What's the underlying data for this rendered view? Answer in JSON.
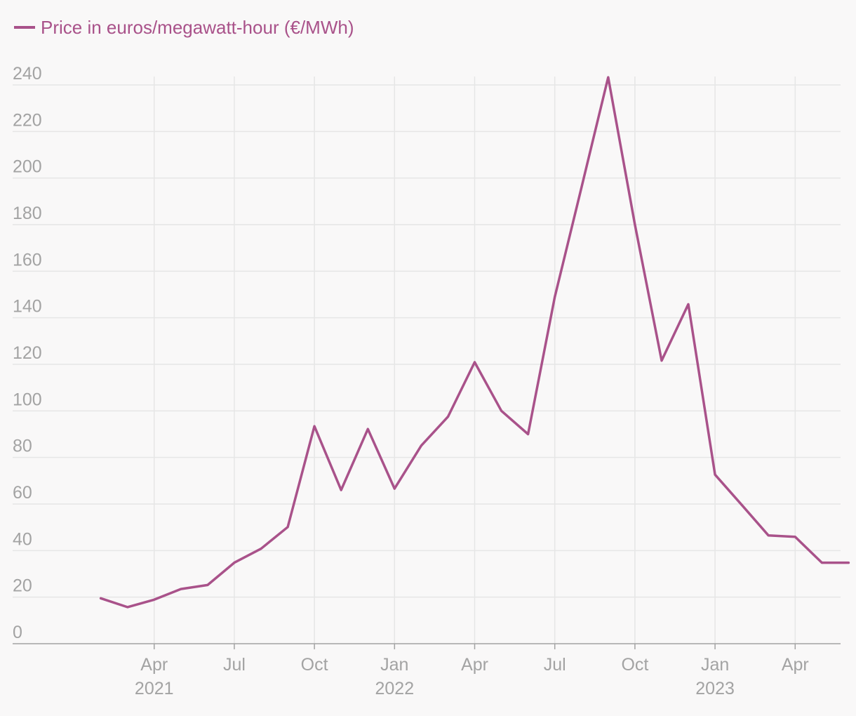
{
  "chart_data": {
    "type": "line",
    "title": "",
    "xlabel": "",
    "ylabel": "",
    "legend_position": "top-left",
    "series": [
      {
        "name": "Price in euros/megawatt-hour (€/MWh)",
        "color": "#a9528a",
        "x": [
          0,
          1,
          2,
          3,
          4,
          5,
          6,
          7,
          8,
          9,
          10,
          11,
          12,
          13,
          14,
          15,
          16,
          17,
          18,
          19,
          20,
          21,
          22,
          23,
          24,
          25,
          26,
          27,
          28
        ],
        "values": [
          19.5,
          15.7,
          18.9,
          23.5,
          25.2,
          34.8,
          40.8,
          50.1,
          93.4,
          66.0,
          92.2,
          66.6,
          85.1,
          97.5,
          120.9,
          100.0,
          90.0,
          148.9,
          196.0,
          243.3,
          180.0,
          121.6,
          145.8,
          72.6,
          59.6,
          46.5,
          45.9,
          34.8,
          34.8
        ]
      }
    ],
    "x_ticks": [
      {
        "x": 2,
        "label": "Apr"
      },
      {
        "x": 5,
        "label": "Jul"
      },
      {
        "x": 8,
        "label": "Oct"
      },
      {
        "x": 11,
        "label": "Jan"
      },
      {
        "x": 14,
        "label": "Apr"
      },
      {
        "x": 17,
        "label": "Jul"
      },
      {
        "x": 20,
        "label": "Oct"
      },
      {
        "x": 23,
        "label": "Jan"
      },
      {
        "x": 26,
        "label": "Apr"
      }
    ],
    "year_labels": [
      {
        "x": 2,
        "label": "2021"
      },
      {
        "x": 11,
        "label": "2022"
      },
      {
        "x": 23,
        "label": "2023"
      }
    ],
    "y_ticks": [
      0,
      20,
      40,
      60,
      80,
      100,
      120,
      140,
      160,
      180,
      200,
      220,
      240
    ],
    "ylim": [
      0,
      240
    ],
    "xlim": [
      -3.3,
      27.7
    ],
    "grid": true,
    "colors": {
      "background": "#f9f8f8",
      "grid": "#e6e6e6",
      "axis": "#a3a3a3",
      "tick_label": "#a3a3a3"
    }
  }
}
